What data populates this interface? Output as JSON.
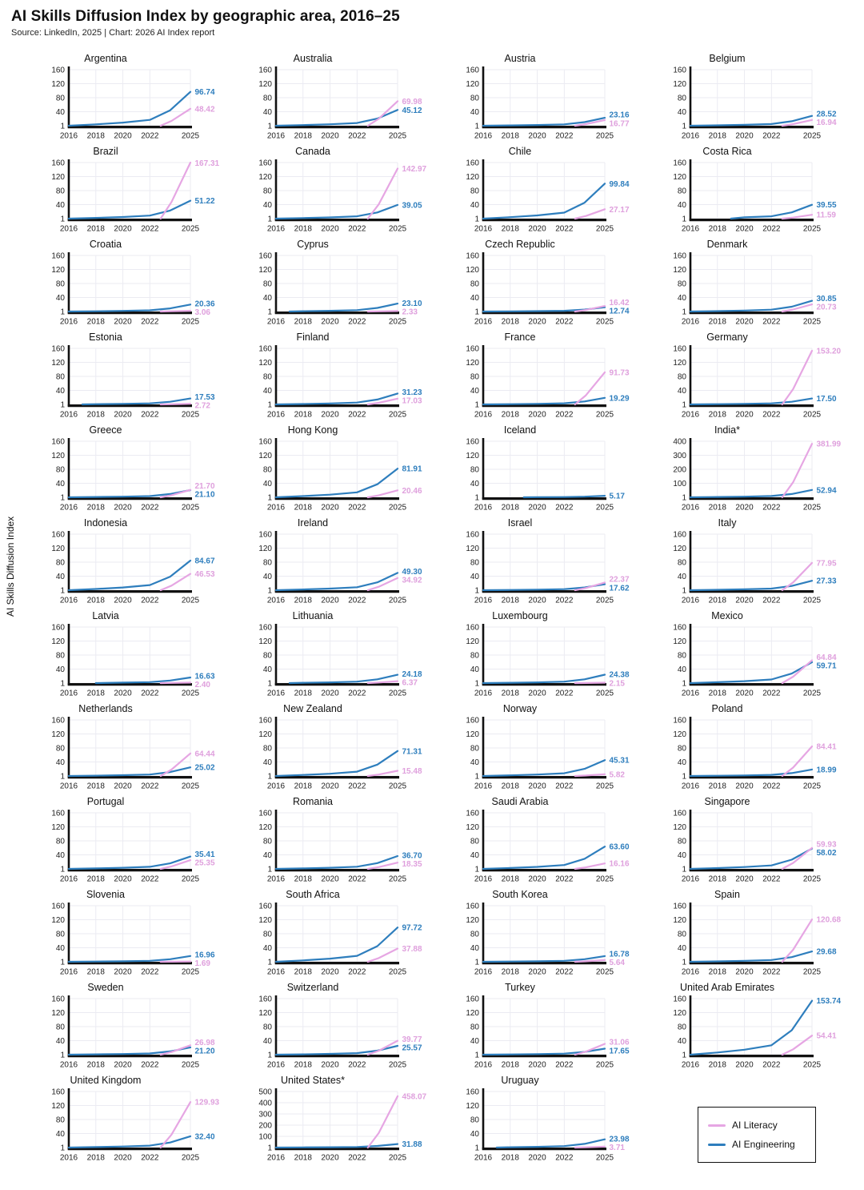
{
  "header": {
    "title": "AI Skills Diffusion Index by geographic area, 2016–25",
    "subtitle": "Source: LinkedIn, 2025 | Chart: 2026 AI Index report"
  },
  "y_axis_label": "AI Skills Diffusion Index",
  "legend": {
    "items": [
      {
        "label": "AI Literacy",
        "color": "#e6a6e3"
      },
      {
        "label": "AI Engineering",
        "color": "#2e7ebd"
      }
    ]
  },
  "colors": {
    "literacy": "#e6a6e3",
    "literacy_label": "#dfa0dd",
    "engineering": "#2e7ebd",
    "axis": "#111111",
    "grid": "#ebebf2",
    "tick_text": "#222222"
  },
  "chart_data": {
    "type": "line",
    "title": "AI Skills Diffusion Index by geographic area, 2016–25",
    "ylabel": "AI Skills Diffusion Index",
    "series_names": [
      "AI Literacy",
      "AI Engineering"
    ],
    "x_range": [
      2016,
      2025
    ],
    "x_ticks": [
      2016,
      2018,
      2020,
      2022,
      2025
    ],
    "default_y_ticks": [
      1,
      40,
      80,
      120,
      160
    ],
    "grid": true,
    "legend_position": "bottom-right",
    "countries": [
      {
        "name": "Argentina",
        "engineering": 96.74,
        "literacy": 48.42
      },
      {
        "name": "Australia",
        "engineering": 45.12,
        "literacy": 69.98
      },
      {
        "name": "Austria",
        "engineering": 23.16,
        "literacy": 16.77
      },
      {
        "name": "Belgium",
        "engineering": 28.52,
        "literacy": 16.94
      },
      {
        "name": "Brazil",
        "engineering": 51.22,
        "literacy": 167.31
      },
      {
        "name": "Canada",
        "engineering": 39.05,
        "literacy": 142.97
      },
      {
        "name": "Chile",
        "engineering": 99.84,
        "literacy": 27.17
      },
      {
        "name": "Costa Rica",
        "engineering": 39.55,
        "literacy": 11.59,
        "engineering_start_year": 2019
      },
      {
        "name": "Croatia",
        "engineering": 20.36,
        "literacy": 3.06
      },
      {
        "name": "Cyprus",
        "engineering": 23.1,
        "literacy": 2.33,
        "engineering_start_year": 2017
      },
      {
        "name": "Czech Republic",
        "engineering": 12.74,
        "literacy": 16.42
      },
      {
        "name": "Denmark",
        "engineering": 30.85,
        "literacy": 20.73
      },
      {
        "name": "Estonia",
        "engineering": 17.53,
        "literacy": 2.72,
        "engineering_start_year": 2017
      },
      {
        "name": "Finland",
        "engineering": 31.23,
        "literacy": 17.03
      },
      {
        "name": "France",
        "engineering": 19.29,
        "literacy": 91.73
      },
      {
        "name": "Germany",
        "engineering": 17.5,
        "literacy": 153.2
      },
      {
        "name": "Greece",
        "engineering": 21.1,
        "literacy": 21.7
      },
      {
        "name": "Hong Kong",
        "engineering": 81.91,
        "literacy": 20.46
      },
      {
        "name": "Iceland",
        "engineering": 5.17,
        "literacy": null,
        "engineering_start_year": 2019
      },
      {
        "name": "India*",
        "engineering": 52.94,
        "literacy": 381.99,
        "y_ticks": [
          1,
          100,
          200,
          300,
          400
        ]
      },
      {
        "name": "Indonesia",
        "engineering": 84.67,
        "literacy": 46.53
      },
      {
        "name": "Ireland",
        "engineering": 49.3,
        "literacy": 34.92
      },
      {
        "name": "Israel",
        "engineering": 17.62,
        "literacy": 22.37
      },
      {
        "name": "Italy",
        "engineering": 27.33,
        "literacy": 77.95
      },
      {
        "name": "Latvia",
        "engineering": 16.63,
        "literacy": 2.4,
        "engineering_start_year": 2018
      },
      {
        "name": "Lithuania",
        "engineering": 24.18,
        "literacy": 6.37,
        "engineering_start_year": 2017
      },
      {
        "name": "Luxembourg",
        "engineering": 24.38,
        "literacy": 2.15
      },
      {
        "name": "Mexico",
        "engineering": 59.71,
        "literacy": 64.84
      },
      {
        "name": "Netherlands",
        "engineering": 25.02,
        "literacy": 64.44
      },
      {
        "name": "New Zealand",
        "engineering": 71.31,
        "literacy": 15.48
      },
      {
        "name": "Norway",
        "engineering": 45.31,
        "literacy": 5.82
      },
      {
        "name": "Poland",
        "engineering": 18.99,
        "literacy": 84.41
      },
      {
        "name": "Portugal",
        "engineering": 35.41,
        "literacy": 25.35
      },
      {
        "name": "Romania",
        "engineering": 36.7,
        "literacy": 18.35
      },
      {
        "name": "Saudi Arabia",
        "engineering": 63.6,
        "literacy": 16.16
      },
      {
        "name": "Singapore",
        "engineering": 58.02,
        "literacy": 59.93
      },
      {
        "name": "Slovenia",
        "engineering": 16.96,
        "literacy": 1.69
      },
      {
        "name": "South Africa",
        "engineering": 97.72,
        "literacy": 37.88
      },
      {
        "name": "South Korea",
        "engineering": 16.78,
        "literacy": 5.64
      },
      {
        "name": "Spain",
        "engineering": 29.68,
        "literacy": 120.68
      },
      {
        "name": "Sweden",
        "engineering": 21.2,
        "literacy": 26.98
      },
      {
        "name": "Switzerland",
        "engineering": 25.57,
        "literacy": 39.77
      },
      {
        "name": "Turkey",
        "engineering": 17.65,
        "literacy": 31.06
      },
      {
        "name": "United Arab Emirates",
        "engineering": 153.74,
        "literacy": 54.41
      },
      {
        "name": "United Kingdom",
        "engineering": 32.4,
        "literacy": 129.93
      },
      {
        "name": "United States*",
        "engineering": 31.88,
        "literacy": 458.07,
        "y_ticks": [
          1,
          100,
          200,
          300,
          400,
          500
        ]
      },
      {
        "name": "Uruguay",
        "engineering": 23.98,
        "literacy": 3.71,
        "engineering_start_year": 2017
      }
    ]
  }
}
